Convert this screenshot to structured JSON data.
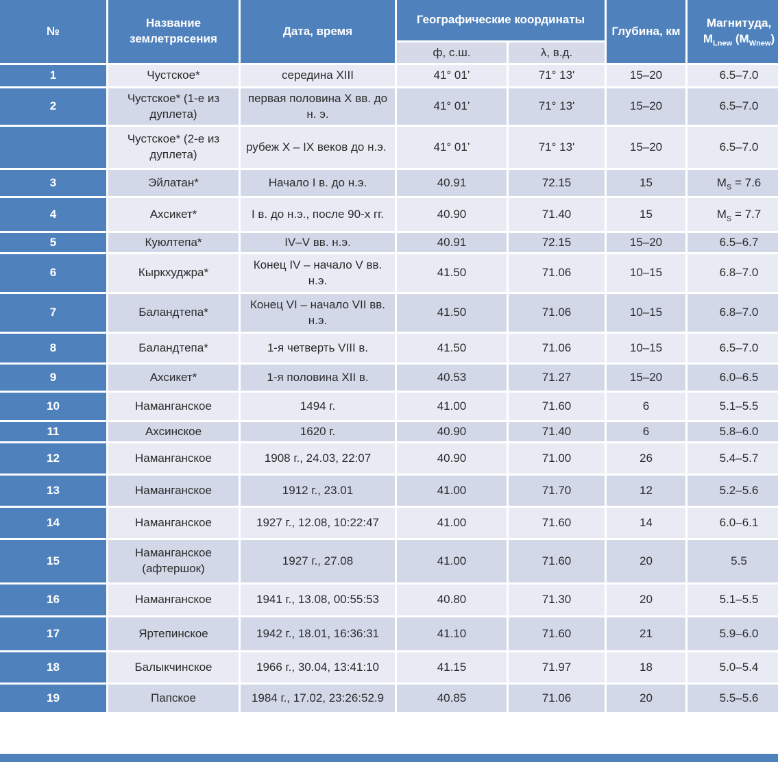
{
  "colors": {
    "header_blue": "#4F81BD",
    "band_light": "#E9EBF4",
    "band_dark": "#D2D8E8",
    "subheader_fill": "#D5D9E8",
    "grid_white": "#FFFFFF",
    "text_dark": "#2B2B2B",
    "header_text": "#FFFFFF"
  },
  "table": {
    "header": {
      "num": "№",
      "name": "Название землетрясения",
      "datetime": "Дата, время",
      "coordinates": "Географические координаты",
      "lat": "ф, с.ш.",
      "lon": "λ, в.д.",
      "depth": "Глубина, км",
      "magnitude_tokens": [
        {
          "t": "Магнитуда,"
        },
        {
          "br": true
        },
        {
          "t": "M"
        },
        {
          "sub": "Lnew"
        },
        {
          "t": " (M"
        },
        {
          "sub": "Wnew"
        },
        {
          "t": ")"
        }
      ]
    },
    "rows": [
      {
        "num": "1",
        "name": "Чустское*",
        "date": "середина XIII",
        "lat": "41° 01’",
        "lon": "71° 13'",
        "depth": "15–20",
        "mag": "6.5–7.0"
      },
      {
        "num": "2",
        "name": "Чустское* (1-е из дуплета)",
        "date": "первая половина X вв. до н. э.",
        "lat": "41° 01’",
        "lon": "71° 13'",
        "depth": "15–20",
        "mag": "6.5–7.0"
      },
      {
        "num": "",
        "name": "Чустское* (2-е из дуплета)",
        "date": "рубеж X – IX веков до н.э.",
        "date_justify": true,
        "lat": "41° 01’",
        "lon": "71° 13'",
        "depth": "15–20",
        "mag": "6.5–7.0"
      },
      {
        "num": "3",
        "name": "Эйлатан*",
        "date": "Начало I в. до н.э.",
        "lat": "40.91",
        "lon": "72.15",
        "depth": "15",
        "mag": {
          "base": "M",
          "sub": "S",
          "rest": " = 7.6"
        }
      },
      {
        "num": "4",
        "name": "Ахсикет*",
        "date": "I в. до н.э., после 90-х гг.",
        "lat": "40.90",
        "lon": "71.40",
        "depth": "15",
        "mag": {
          "base": "M",
          "sub": "S",
          "rest": " = 7.7"
        }
      },
      {
        "num": "5",
        "name": "Куюлтепа*",
        "date": "IV–V вв. н.э.",
        "lat": "40.91",
        "lon": "72.15",
        "depth": "15–20",
        "mag": "6.5–6.7"
      },
      {
        "num": "6",
        "name": "Кыркхуджра*",
        "date": "Конец IV – начало V вв. н.э.",
        "lat": "41.50",
        "lon": "71.06",
        "depth": "10–15",
        "mag": "6.8–7.0"
      },
      {
        "num": "7",
        "name": "Баландтепа*",
        "date": "Конец VI – начало VII вв. н.э.",
        "lat": "41.50",
        "lon": "71.06",
        "depth": "10–15",
        "mag": "6.8–7.0"
      },
      {
        "num": "8",
        "name": "Баландтепа*",
        "date": "1-я четверть VIII в.",
        "lat": "41.50",
        "lon": "71.06",
        "depth": "10–15",
        "mag": "6.5–7.0"
      },
      {
        "num": "9",
        "name": "Ахсикет*",
        "date": "1-я половина XII в.",
        "lat": "40.53",
        "lon": "71.27",
        "depth": "15–20",
        "mag": "6.0–6.5"
      },
      {
        "num": "10",
        "name": "Наманганское",
        "date": "1494 г.",
        "lat": "41.00",
        "lon": "71.60",
        "depth": "6",
        "mag": "5.1–5.5"
      },
      {
        "num": "11",
        "name": "Ахсинское",
        "date": "1620 г.",
        "lat": "40.90",
        "lon": "71.40",
        "depth": "6",
        "mag": "5.8–6.0"
      },
      {
        "num": "12",
        "name": "Наманганское",
        "date": "1908 г., 24.03, 22:07",
        "lat": "40.90",
        "lon": "71.00",
        "depth": "26",
        "mag": "5.4–5.7"
      },
      {
        "num": "13",
        "name": "Наманганское",
        "date": "1912 г., 23.01",
        "lat": "41.00",
        "lon": "71.70",
        "depth": "12",
        "mag": "5.2–5.6"
      },
      {
        "num": "14",
        "name": "Наманганское",
        "date": "1927 г., 12.08, 10:22:47",
        "lat": "41.00",
        "lon": "71.60",
        "depth": "14",
        "mag": "6.0–6.1"
      },
      {
        "num": "15",
        "name": "Наманганское (афтершок)",
        "date": "1927 г., 27.08",
        "lat": "41.00",
        "lon": "71.60",
        "depth": "20",
        "mag": "5.5"
      },
      {
        "num": "16",
        "name": "Наманганское",
        "date": "1941 г., 13.08, 00:55:53",
        "lat": "40.80",
        "lon": "71.30",
        "depth": "20",
        "mag": "5.1–5.5"
      },
      {
        "num": "17",
        "name": "Яртепинское",
        "date": "1942 г., 18.01, 16:36:31",
        "lat": "41.10",
        "lon": "71.60",
        "depth": "21",
        "mag": "5.9–6.0"
      },
      {
        "num": "18",
        "name": "Балыкчинское",
        "date": "1966 г., 30.04, 13:41:10",
        "lat": "41.15",
        "lon": "71.97",
        "depth": "18",
        "mag": "5.0–5.4"
      },
      {
        "num": "19",
        "name": "Папское",
        "date": "1984 г., 17.02, 23:26:52.9",
        "lat": "40.85",
        "lon": "71.06",
        "depth": "20",
        "mag": "5.5–5.6"
      }
    ]
  }
}
